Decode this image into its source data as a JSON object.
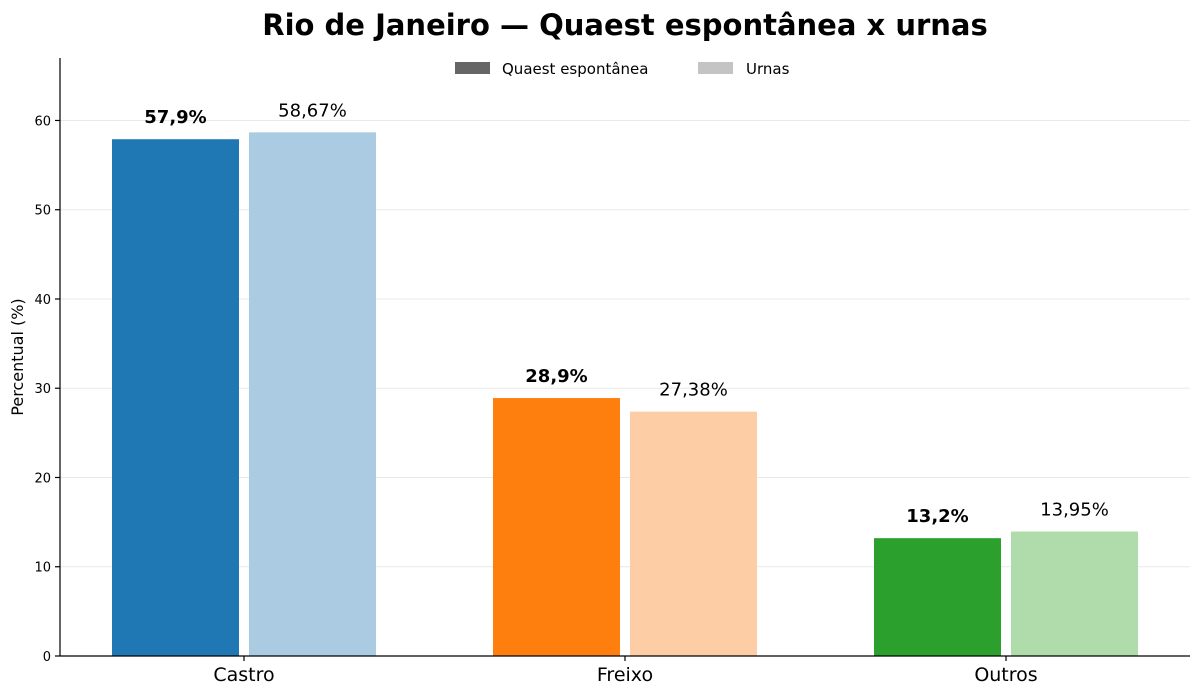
{
  "chart_data": {
    "type": "bar",
    "title": "Rio de Janeiro — Quaest espontânea x urnas",
    "xlabel": "",
    "ylabel": "Percentual (%)",
    "ylim": [
      0,
      67
    ],
    "yticks": [
      0,
      10,
      20,
      30,
      40,
      50,
      60
    ],
    "grid": "horizontal",
    "legend_position": "top-center",
    "categories": [
      "Castro",
      "Freixo",
      "Outros"
    ],
    "series": [
      {
        "name": "Quaest espontânea",
        "values": [
          57.9,
          28.9,
          13.2
        ],
        "labels": [
          "57,9%",
          "28,9%",
          "13,2%"
        ],
        "colors": [
          "#1f77b4",
          "#ff7f0e",
          "#2ca02c"
        ],
        "legend_color": "#666666"
      },
      {
        "name": "Urnas",
        "values": [
          58.67,
          27.38,
          13.95
        ],
        "labels": [
          "58,67%",
          "27,38%",
          "13,95%"
        ],
        "colors": [
          "#aacbe2",
          "#fdcea5",
          "#b0dbab"
        ],
        "legend_color": "#c4c4c4"
      }
    ]
  }
}
